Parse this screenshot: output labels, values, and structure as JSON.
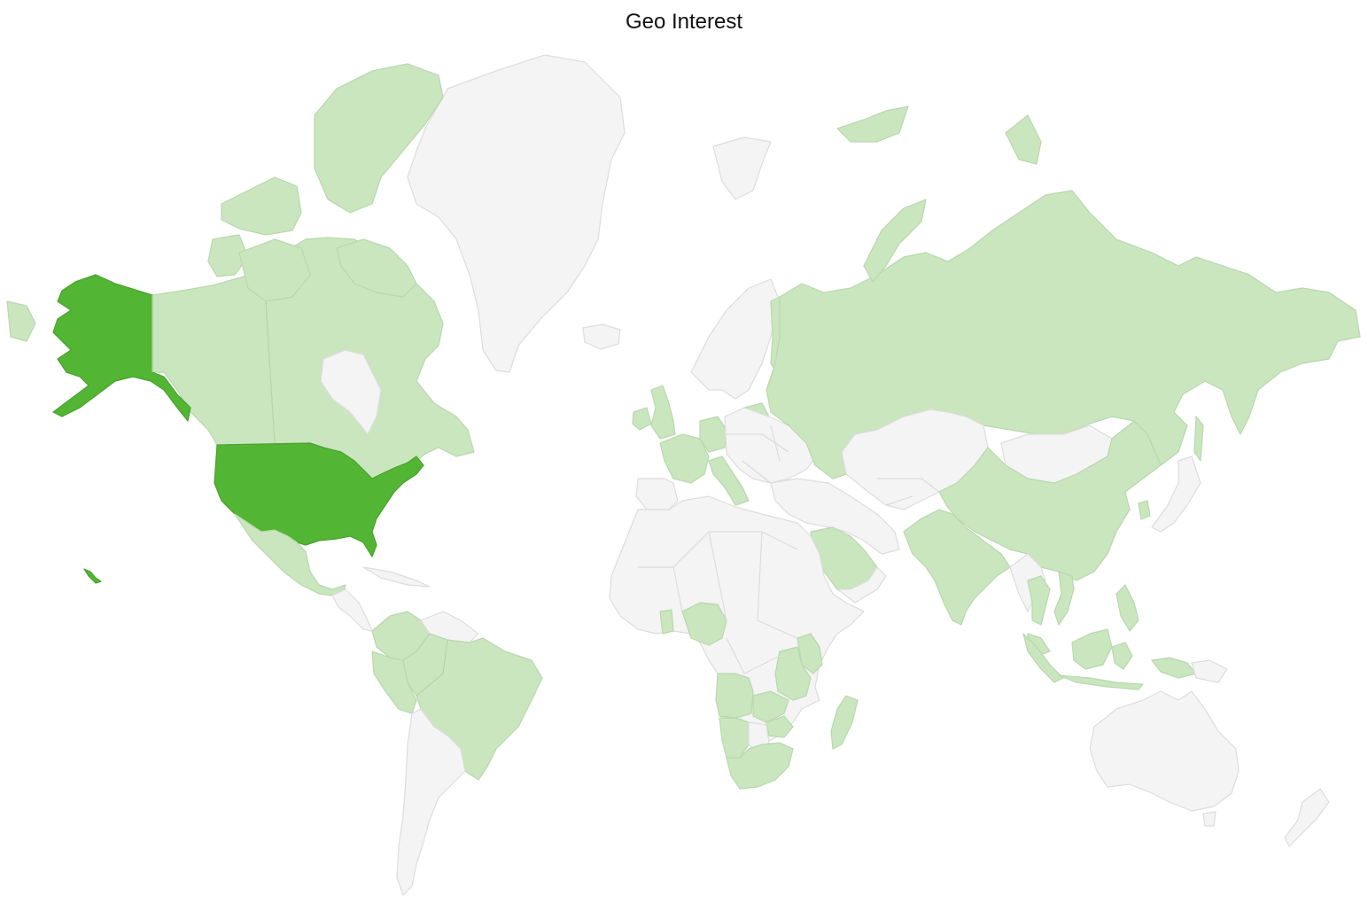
{
  "title": "Geo Interest",
  "colors": {
    "no_data": "#f4f4f4",
    "low_interest": "#c9e6bf",
    "high_interest": "#52b533",
    "border": "#dddddd"
  },
  "regions": [
    {
      "id": "usa",
      "level": 2
    },
    {
      "id": "alaska",
      "level": 2
    },
    {
      "id": "hawaii",
      "level": 2
    },
    {
      "id": "canada",
      "level": 1
    },
    {
      "id": "canada-islands",
      "level": 1
    },
    {
      "id": "mexico",
      "level": 1
    },
    {
      "id": "colombia",
      "level": 1
    },
    {
      "id": "peru",
      "level": 1
    },
    {
      "id": "ecuador",
      "level": 1
    },
    {
      "id": "brazil",
      "level": 1
    },
    {
      "id": "russia",
      "level": 1
    },
    {
      "id": "china",
      "level": 1
    },
    {
      "id": "india",
      "level": 1
    },
    {
      "id": "saudi-arabia",
      "level": 1
    },
    {
      "id": "united-kingdom",
      "level": 1
    },
    {
      "id": "ireland",
      "level": 1
    },
    {
      "id": "france",
      "level": 1
    },
    {
      "id": "germany",
      "level": 1
    },
    {
      "id": "italy",
      "level": 1
    },
    {
      "id": "romania",
      "level": 1
    },
    {
      "id": "finland",
      "level": 1
    },
    {
      "id": "poland",
      "level": 1
    },
    {
      "id": "nigeria",
      "level": 1
    },
    {
      "id": "ghana",
      "level": 1
    },
    {
      "id": "kenya",
      "level": 1
    },
    {
      "id": "tanzania",
      "level": 1
    },
    {
      "id": "zambia",
      "level": 1
    },
    {
      "id": "zimbabwe",
      "level": 1
    },
    {
      "id": "angola",
      "level": 1
    },
    {
      "id": "namibia",
      "level": 1
    },
    {
      "id": "south-africa",
      "level": 1
    },
    {
      "id": "madagascar",
      "level": 1
    },
    {
      "id": "thailand",
      "level": 1
    },
    {
      "id": "vietnam",
      "level": 1
    },
    {
      "id": "malaysia",
      "level": 1
    },
    {
      "id": "indonesia",
      "level": 1
    },
    {
      "id": "philippines",
      "level": 1
    },
    {
      "id": "south-korea",
      "level": 1
    },
    {
      "id": "papua-new-guinea",
      "level": 1
    },
    {
      "id": "svalbard",
      "level": 1
    },
    {
      "id": "greenland",
      "level": 0
    },
    {
      "id": "australia",
      "level": 0
    },
    {
      "id": "argentina-chile",
      "level": 0
    },
    {
      "id": "africa-rest",
      "level": 0
    },
    {
      "id": "kazakhstan-mongolia",
      "level": 0
    }
  ]
}
